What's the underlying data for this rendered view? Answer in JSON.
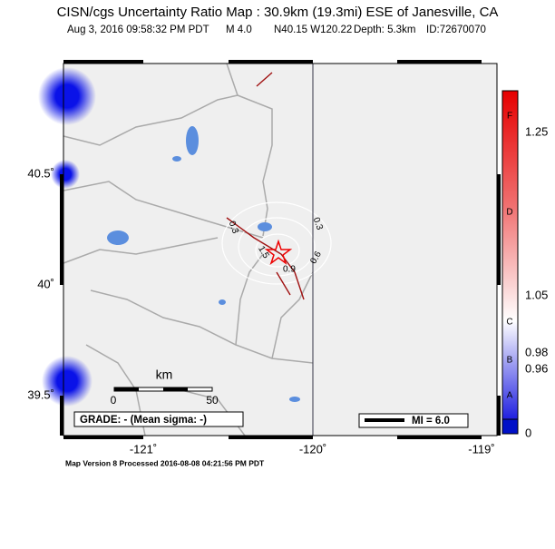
{
  "header": {
    "title": "CISN/cgs Uncertainty Ratio Map : 30.9km (19.3mi) ESE of Janesville, CA",
    "event": [
      "Aug  3, 2016 09:58:32 PM PDT",
      "M 4.0",
      "N40.15 W120.22",
      "Depth: 5.3km",
      "ID:72670070"
    ]
  },
  "map": {
    "lat_labels": [
      "40.5˚",
      "40˚",
      "39.5˚"
    ],
    "lon_labels": [
      "-121˚",
      "-120˚",
      "-119˚"
    ],
    "contour_labels": [
      "0.3",
      "0.3",
      "0.6",
      "0.9",
      "1.5"
    ],
    "scale_bar": {
      "unit": "km",
      "start": "0",
      "end": "50"
    },
    "grade": "GRADE: - (Mean sigma: -)",
    "legend": "MI = 6.0"
  },
  "colorbar": {
    "values": [
      "1.25",
      "1.05",
      "0.98",
      "0.96",
      "0"
    ],
    "grades": [
      "F",
      "D",
      "C",
      "B",
      "A"
    ]
  },
  "footer": "Map Version 8 Processed 2016-08-08 04:21:56 PM PDT"
}
